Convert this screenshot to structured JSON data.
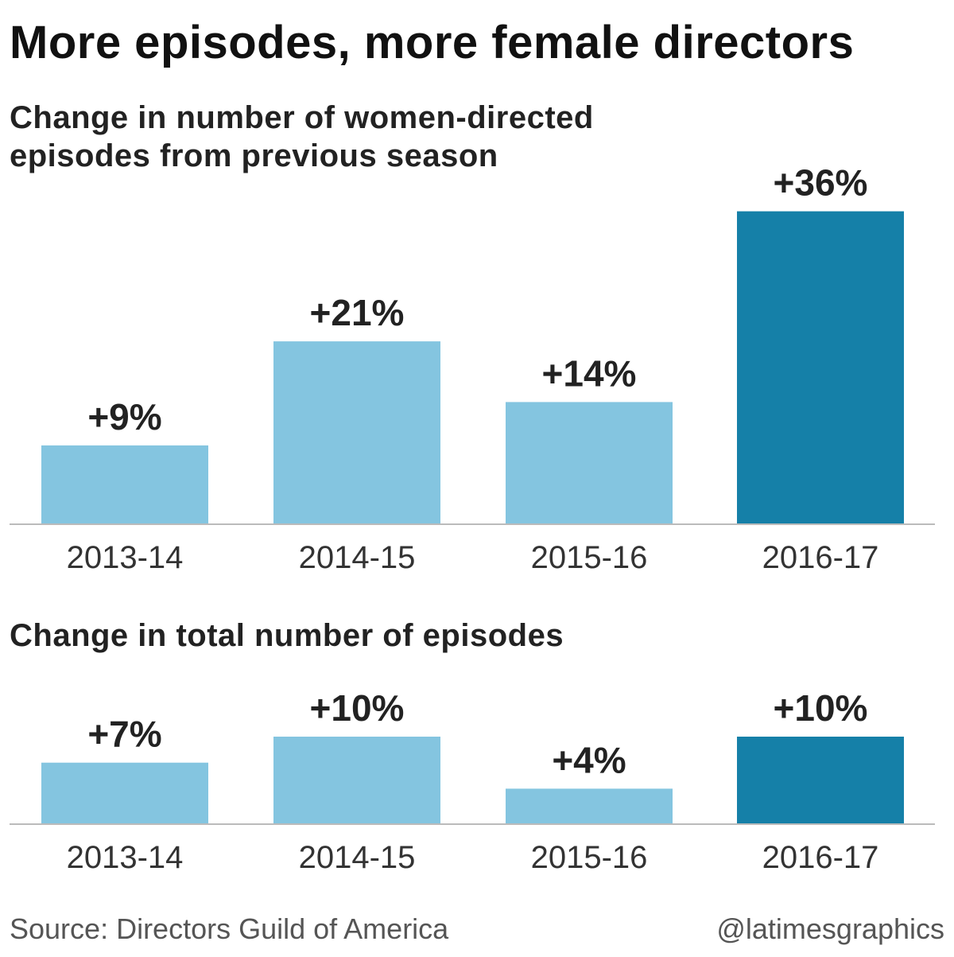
{
  "title": "More episodes, more female directors",
  "source": "Source: Directors Guild of America",
  "credit": "@latimesgraphics",
  "colors": {
    "highlight": "#1580a8",
    "default": "#84c5e0",
    "baseline": "#bbbbbb",
    "text": "#222222"
  },
  "chart_data": [
    {
      "type": "bar",
      "title": "Change in number of women-directed episodes from previous season",
      "categories": [
        "2013-14",
        "2014-15",
        "2015-16",
        "2016-17"
      ],
      "values": [
        9,
        21,
        14,
        36
      ],
      "value_labels": [
        "+9%",
        "+21%",
        "+14%",
        "+36%"
      ],
      "unit": "%",
      "highlight_index": 3,
      "grid": false,
      "legend": "none"
    },
    {
      "type": "bar",
      "title": "Change in total number of episodes",
      "categories": [
        "2013-14",
        "2014-15",
        "2015-16",
        "2016-17"
      ],
      "values": [
        7,
        10,
        4,
        10
      ],
      "value_labels": [
        "+7%",
        "+10%",
        "+4%",
        "+10%"
      ],
      "unit": "%",
      "highlight_index": 3,
      "grid": false,
      "legend": "none"
    }
  ]
}
